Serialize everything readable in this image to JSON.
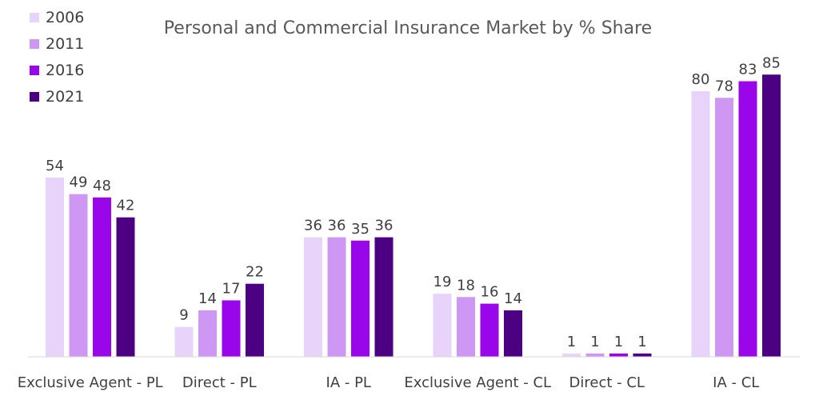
{
  "chart_data": {
    "type": "bar",
    "title": "Personal and Commercial Insurance Market by % Share",
    "xlabel": "",
    "ylabel": "",
    "ylim": [
      0,
      100
    ],
    "grid": false,
    "legend_position": "top-left",
    "categories": [
      "Exclusive Agent - PL",
      "Direct - PL",
      "IA - PL",
      "Exclusive Agent - CL",
      "Direct - CL",
      "IA - CL"
    ],
    "series": [
      {
        "name": "2006",
        "color": "#E8D4FB",
        "values": [
          54,
          9,
          36,
          19,
          1,
          80
        ]
      },
      {
        "name": "2011",
        "color": "#CE97F3",
        "values": [
          49,
          14,
          36,
          18,
          1,
          78
        ]
      },
      {
        "name": "2016",
        "color": "#9A06EA",
        "values": [
          48,
          17,
          35,
          16,
          1,
          83
        ]
      },
      {
        "name": "2021",
        "color": "#4B0182",
        "values": [
          42,
          22,
          36,
          14,
          1,
          85
        ]
      }
    ]
  }
}
